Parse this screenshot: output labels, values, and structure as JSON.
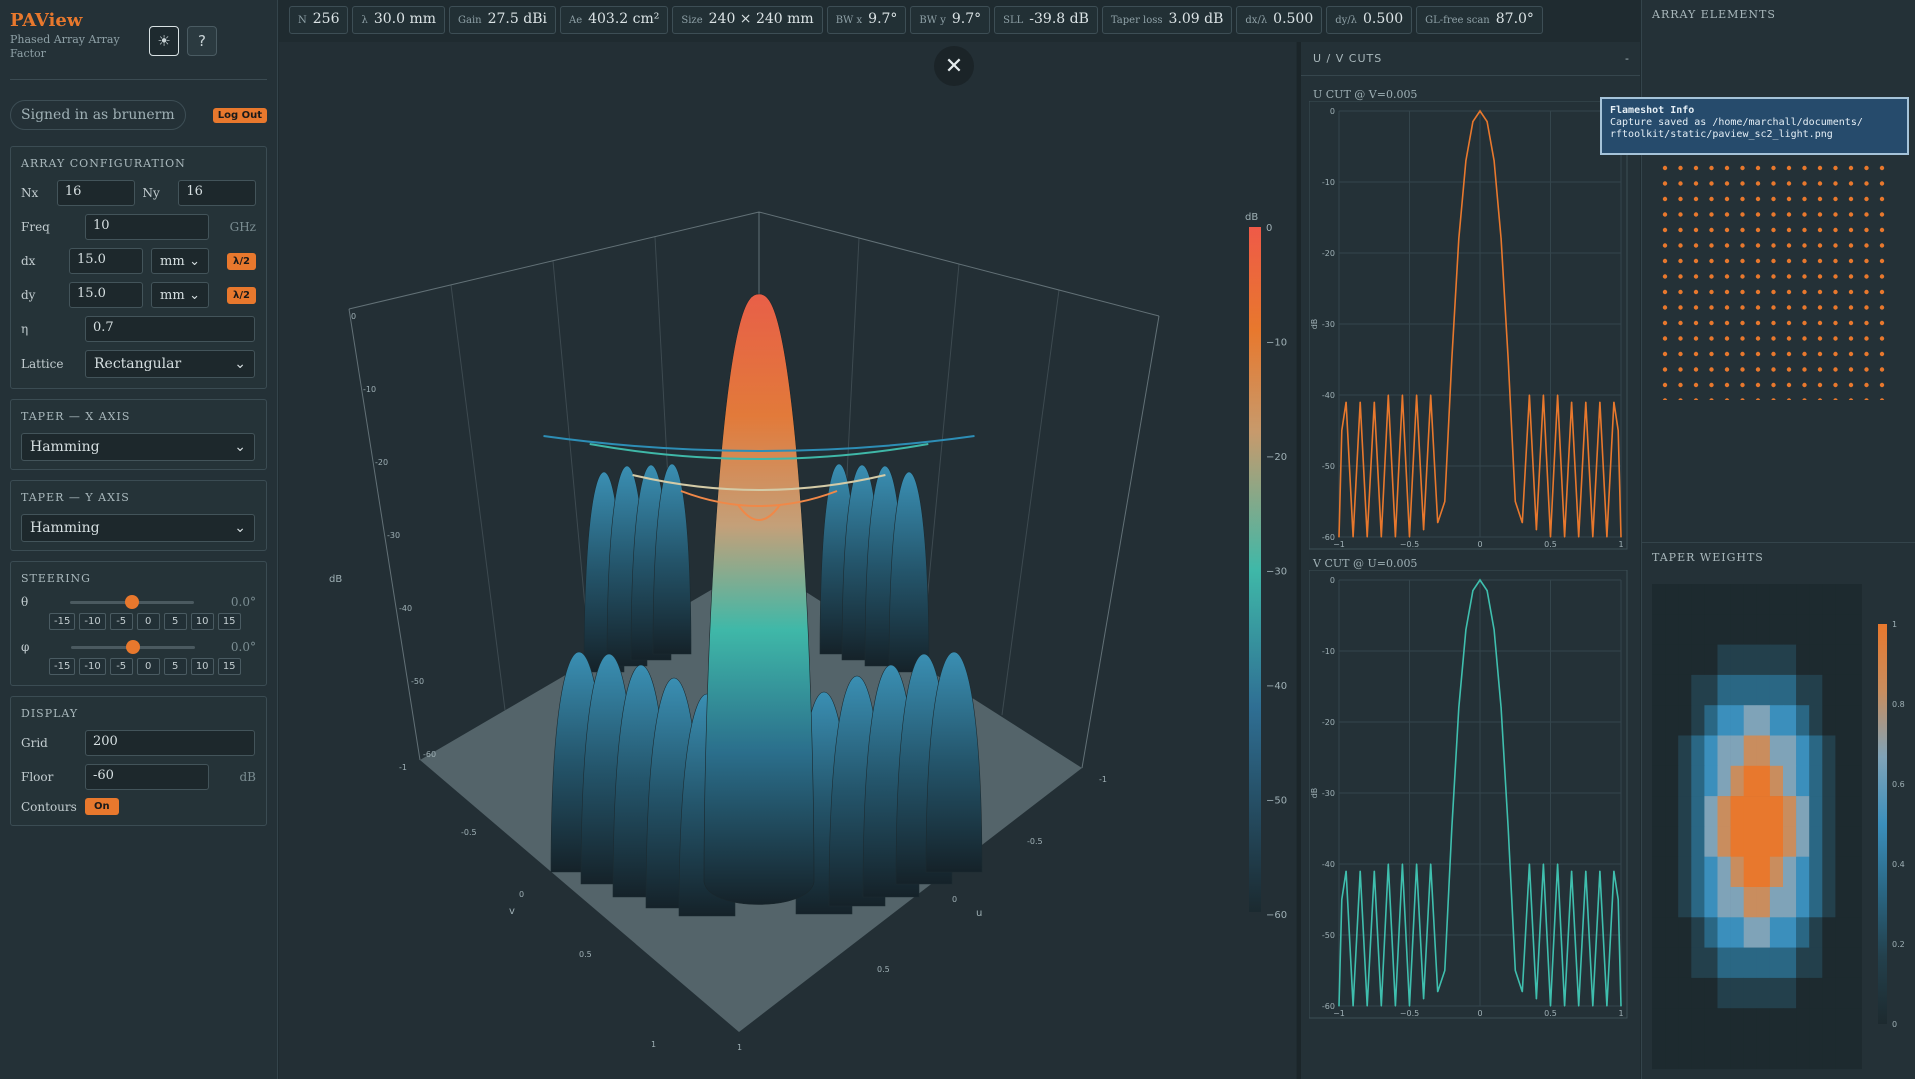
{
  "app": {
    "name": "PAView",
    "subtitle": "Phased Array Array Factor"
  },
  "header_buttons": {
    "theme_icon": "☀",
    "help_icon": "?"
  },
  "user": {
    "signed_in": "Signed in as brunerm",
    "logout": "Log Out"
  },
  "array_config": {
    "title": "ARRAY CONFIGURATION",
    "nx_label": "Nx",
    "nx": "16",
    "ny_label": "Ny",
    "ny": "16",
    "freq_label": "Freq",
    "freq": "10",
    "freq_unit": "GHz",
    "dx_label": "dx",
    "dx": "15.0",
    "dx_unit": "mm",
    "dy_label": "dy",
    "dy": "15.0",
    "dy_unit": "mm",
    "lambda_half": "λ/2",
    "eta_label": "η",
    "eta": "0.7",
    "lattice_label": "Lattice",
    "lattice": "Rectangular"
  },
  "taper_x": {
    "title": "TAPER — X AXIS",
    "value": "Hamming"
  },
  "taper_y": {
    "title": "TAPER — Y AXIS",
    "value": "Hamming"
  },
  "steering": {
    "title": "STEERING",
    "theta_label": "θ",
    "theta": "0.0°",
    "theta_fraction": 0.5,
    "phi_label": "φ",
    "phi": "0.0°",
    "phi_fraction": 0.5,
    "steps": [
      "-15",
      "-10",
      "-5",
      "0",
      "5",
      "10",
      "15"
    ]
  },
  "display": {
    "title": "DISPLAY",
    "grid_label": "Grid",
    "grid": "200",
    "floor_label": "Floor",
    "floor": "-60",
    "floor_unit": "dB",
    "contours_label": "Contours",
    "contours": "On"
  },
  "metrics": [
    {
      "k": "N",
      "v": "256"
    },
    {
      "k": "λ",
      "v": "30.0 mm"
    },
    {
      "k": "Gain",
      "v": "27.5 dBi"
    },
    {
      "k": "Ae",
      "v": "403.2 cm²"
    },
    {
      "k": "Size",
      "v": "240 × 240 mm"
    },
    {
      "k": "BW x",
      "v": "9.7°"
    },
    {
      "k": "BW y",
      "v": "9.7°"
    },
    {
      "k": "SLL",
      "v": "-39.8 dB"
    },
    {
      "k": "Taper loss",
      "v": "3.09 dB"
    },
    {
      "k": "dx/λ",
      "v": "0.500"
    },
    {
      "k": "dy/λ",
      "v": "0.500"
    },
    {
      "k": "GL-free scan",
      "v": "87.0°"
    }
  ],
  "view3d": {
    "close_icon": "✕",
    "z_label": "dB",
    "z_ticks": [
      "0",
      "-10",
      "-20",
      "-30",
      "-40",
      "-50",
      "-60"
    ],
    "u_label": "u",
    "v_label": "v",
    "u_ticks": [
      "-1",
      "-0.5",
      "0",
      "0.5",
      "1"
    ],
    "v_ticks": [
      "-1",
      "-0.5",
      "0",
      "0.5",
      "1"
    ],
    "colorbar_label": "dB",
    "colorbar_ticks": [
      "0",
      "−10",
      "−20",
      "−30",
      "−40",
      "−50",
      "−60"
    ]
  },
  "cuts": {
    "title": "U / V CUTS",
    "collapse": "-",
    "u_cut_title": "U CUT @ V=0.005",
    "u_axis": "u",
    "v_cut_title": "V CUT @ U=0.005",
    "v_axis": "v",
    "ylabel": "dB",
    "y_ticks": [
      "0",
      "-10",
      "-20",
      "-30",
      "-40",
      "-50",
      "-60"
    ],
    "x_ticks": [
      "−1",
      "−0.5",
      "0",
      "0.5",
      "1"
    ]
  },
  "right": {
    "elements_title": "ARRAY ELEMENTS",
    "taper_title": "TAPER WEIGHTS",
    "taper_ticks": [
      "1",
      "0.8",
      "0.6",
      "0.4",
      "0.2",
      "0"
    ]
  },
  "flameshot": {
    "title": "Flameshot Info",
    "line1": "Capture saved as /home/marchall/documents/",
    "line2": "rftoolkit/static/paview_sc2_light.png"
  },
  "colors": {
    "accent": "#e8782d",
    "teal": "#3fbfae",
    "bg": "#1f2b30"
  },
  "chart_data": [
    {
      "type": "line",
      "title": "U CUT @ V=0.005",
      "xlabel": "u",
      "ylabel": "dB",
      "xlim": [
        -1,
        1
      ],
      "ylim": [
        -60,
        0
      ],
      "series": [
        {
          "color": "#e8782d",
          "x": [
            -1,
            -0.98,
            -0.95,
            -0.9,
            -0.85,
            -0.8,
            -0.75,
            -0.7,
            -0.65,
            -0.6,
            -0.55,
            -0.5,
            -0.45,
            -0.4,
            -0.35,
            -0.3,
            -0.25,
            -0.2,
            -0.15,
            -0.1,
            -0.05,
            0,
            0.05,
            0.1,
            0.15,
            0.2,
            0.25,
            0.3,
            0.35,
            0.4,
            0.45,
            0.5,
            0.55,
            0.6,
            0.65,
            0.7,
            0.75,
            0.8,
            0.85,
            0.9,
            0.95,
            0.98,
            1
          ],
          "y": [
            -60,
            -45,
            -41,
            -60,
            -41,
            -60,
            -41,
            -60,
            -40,
            -60,
            -40,
            -60,
            -40,
            -59,
            -40,
            -58,
            -55,
            -35,
            -18,
            -7,
            -1.5,
            0,
            -1.5,
            -7,
            -18,
            -35,
            -55,
            -58,
            -40,
            -59,
            -40,
            -60,
            -40,
            -60,
            -41,
            -60,
            -41,
            -60,
            -41,
            -60,
            -41,
            -45,
            -60
          ]
        }
      ]
    },
    {
      "type": "line",
      "title": "V CUT @ U=0.005",
      "xlabel": "v",
      "ylabel": "dB",
      "xlim": [
        -1,
        1
      ],
      "ylim": [
        -60,
        0
      ],
      "series": [
        {
          "color": "#3fbfae",
          "x": [
            -1,
            -0.98,
            -0.95,
            -0.9,
            -0.85,
            -0.8,
            -0.75,
            -0.7,
            -0.65,
            -0.6,
            -0.55,
            -0.5,
            -0.45,
            -0.4,
            -0.35,
            -0.3,
            -0.25,
            -0.2,
            -0.15,
            -0.1,
            -0.05,
            0,
            0.05,
            0.1,
            0.15,
            0.2,
            0.25,
            0.3,
            0.35,
            0.4,
            0.45,
            0.5,
            0.55,
            0.6,
            0.65,
            0.7,
            0.75,
            0.8,
            0.85,
            0.9,
            0.95,
            0.98,
            1
          ],
          "y": [
            -60,
            -45,
            -41,
            -60,
            -41,
            -60,
            -41,
            -60,
            -40,
            -60,
            -40,
            -60,
            -40,
            -59,
            -40,
            -58,
            -55,
            -35,
            -18,
            -7,
            -1.5,
            0,
            -1.5,
            -7,
            -18,
            -35,
            -55,
            -58,
            -40,
            -59,
            -40,
            -60,
            -40,
            -60,
            -41,
            -60,
            -41,
            -60,
            -41,
            -60,
            -41,
            -45,
            -60
          ]
        }
      ]
    }
  ]
}
